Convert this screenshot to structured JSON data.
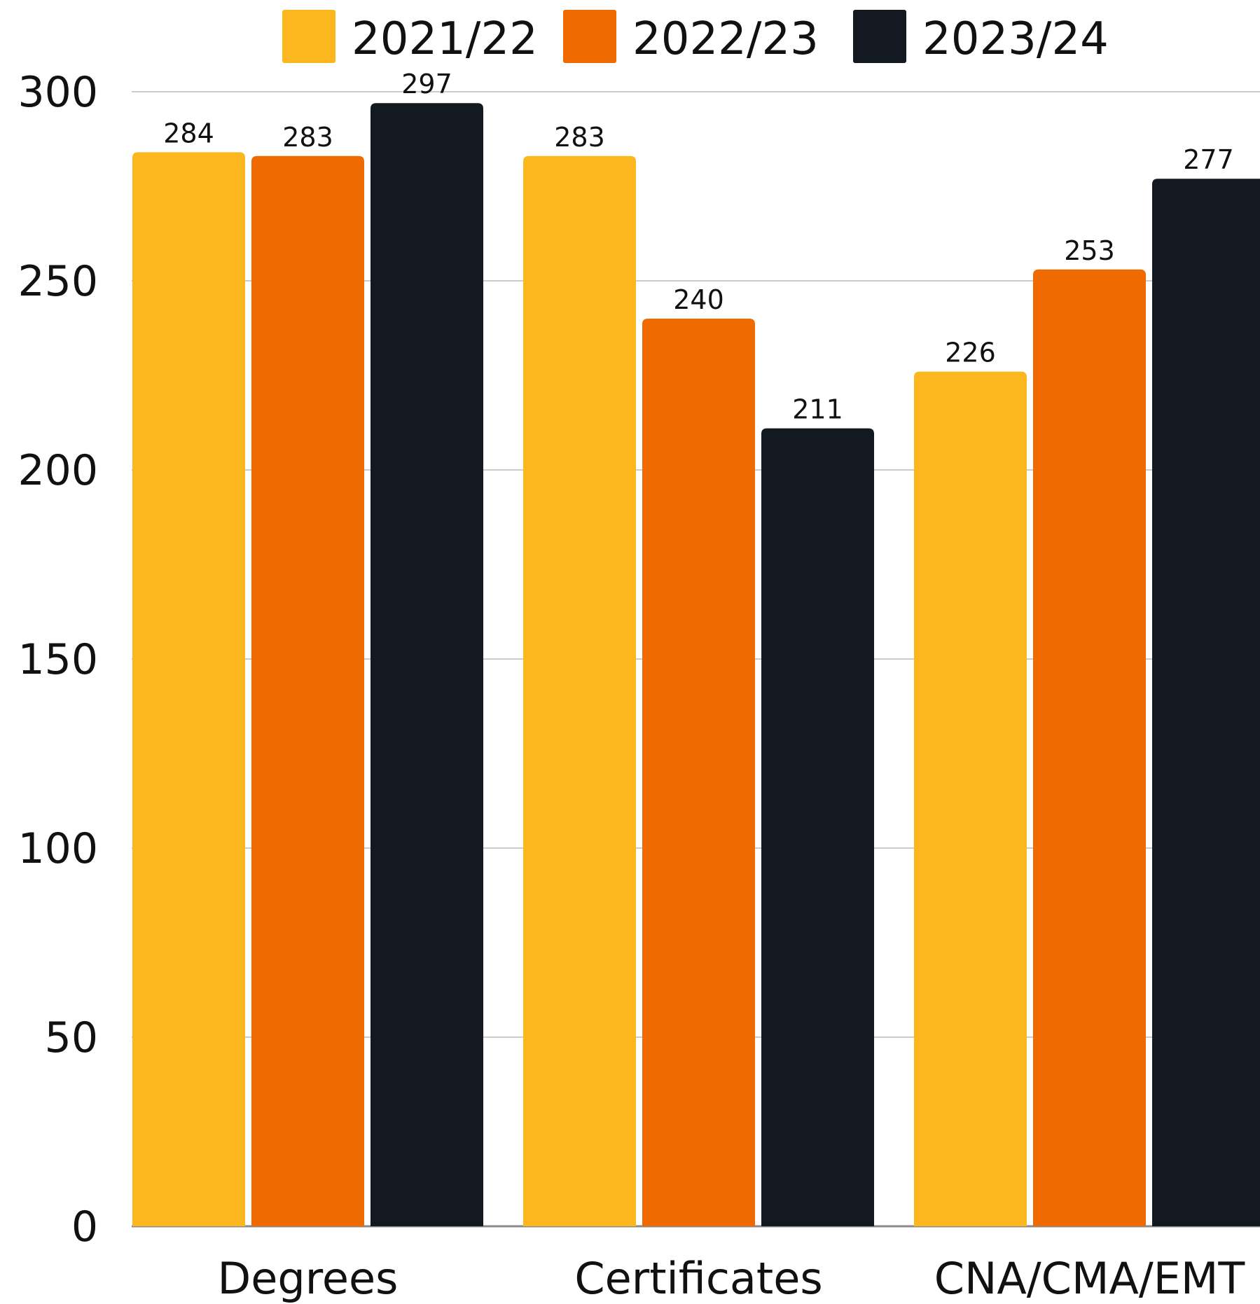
{
  "chart_data": {
    "type": "bar",
    "categories": [
      "Degrees",
      "Certificates",
      "CNA/CMA/EMT"
    ],
    "series": [
      {
        "name": "2021/22",
        "color": "#FDB71E",
        "values": [
          284,
          283,
          226
        ]
      },
      {
        "name": "2022/23",
        "color": "#EF6A00",
        "values": [
          283,
          240,
          253
        ]
      },
      {
        "name": "2023/24",
        "color": "#121920",
        "values": [
          297,
          211,
          277
        ]
      }
    ],
    "y_ticks": [
      "0",
      "50",
      "100",
      "150",
      "200",
      "250",
      "300"
    ],
    "ylim": [
      0,
      300
    ],
    "grid": true,
    "legend": "top",
    "title": "",
    "xlabel": "",
    "ylabel": ""
  }
}
